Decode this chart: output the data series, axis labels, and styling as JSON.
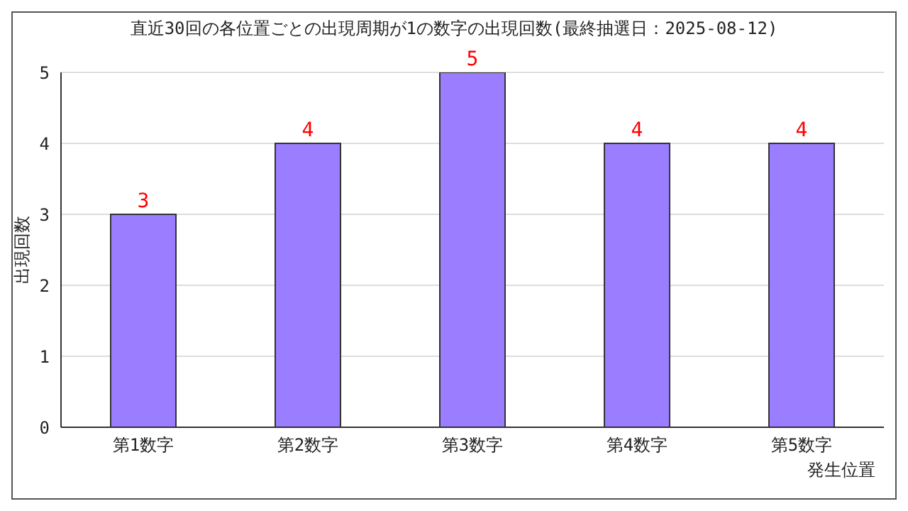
{
  "chart_data": {
    "type": "bar",
    "title": "直近30回の各位置ごとの出現周期が1の数字の出現回数(最終抽選日：2025-08-12)",
    "xlabel": "発生位置",
    "ylabel": "出現回数",
    "categories": [
      "第1数字",
      "第2数字",
      "第3数字",
      "第4数字",
      "第5数字"
    ],
    "values": [
      3,
      4,
      5,
      4,
      4
    ],
    "color": "#9b7dff",
    "data_labels": true,
    "ylim": [
      0,
      5
    ],
    "yticks": [
      0,
      1,
      2,
      3,
      4,
      5
    ],
    "grid": "y"
  }
}
